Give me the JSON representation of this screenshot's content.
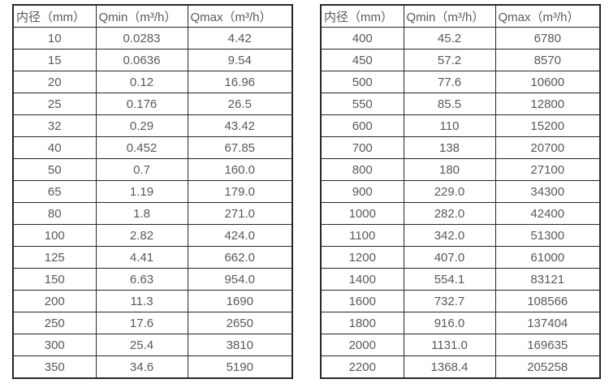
{
  "styles": {
    "text_color": "#595959",
    "border_color": "#262626",
    "background_color": "#ffffff"
  },
  "chart_data": [
    {
      "type": "table",
      "title": "",
      "columns": [
        "内径（mm）",
        "Qmin（m³/h）",
        "Qmax（m³/h）"
      ],
      "rows": [
        [
          "10",
          "0.0283",
          "4.42"
        ],
        [
          "15",
          "0.0636",
          "9.54"
        ],
        [
          "20",
          "0.12",
          "16.96"
        ],
        [
          "25",
          "0.176",
          "26.5"
        ],
        [
          "32",
          "0.29",
          "43.42"
        ],
        [
          "40",
          "0.452",
          "67.85"
        ],
        [
          "50",
          "0.7",
          "160.0"
        ],
        [
          "65",
          "1.19",
          "179.0"
        ],
        [
          "80",
          "1.8",
          "271.0"
        ],
        [
          "100",
          "2.82",
          "424.0"
        ],
        [
          "125",
          "4.41",
          "662.0"
        ],
        [
          "150",
          "6.63",
          "954.0"
        ],
        [
          "200",
          "11.3",
          "1690"
        ],
        [
          "250",
          "17.6",
          "2650"
        ],
        [
          "300",
          "25.4",
          "3810"
        ],
        [
          "350",
          "34.6",
          "5190"
        ]
      ]
    },
    {
      "type": "table",
      "title": "",
      "columns": [
        "内径（mm）",
        "Qmin（m³/h）",
        "Qmax（m³/h）"
      ],
      "rows": [
        [
          "400",
          "45.2",
          "6780"
        ],
        [
          "450",
          "57.2",
          "8570"
        ],
        [
          "500",
          "77.6",
          "10600"
        ],
        [
          "550",
          "85.5",
          "12800"
        ],
        [
          "600",
          "110",
          "15200"
        ],
        [
          "700",
          "138",
          "20700"
        ],
        [
          "800",
          "180",
          "27100"
        ],
        [
          "900",
          "229.0",
          "34300"
        ],
        [
          "1000",
          "282.0",
          "42400"
        ],
        [
          "1100",
          "342.0",
          "51300"
        ],
        [
          "1200",
          "407.0",
          "61000"
        ],
        [
          "1400",
          "554.1",
          "83121"
        ],
        [
          "1600",
          "732.7",
          "108566"
        ],
        [
          "1800",
          "916.0",
          "137404"
        ],
        [
          "2000",
          "1131.0",
          "169635"
        ],
        [
          "2200",
          "1368.4",
          "205258"
        ]
      ]
    }
  ]
}
